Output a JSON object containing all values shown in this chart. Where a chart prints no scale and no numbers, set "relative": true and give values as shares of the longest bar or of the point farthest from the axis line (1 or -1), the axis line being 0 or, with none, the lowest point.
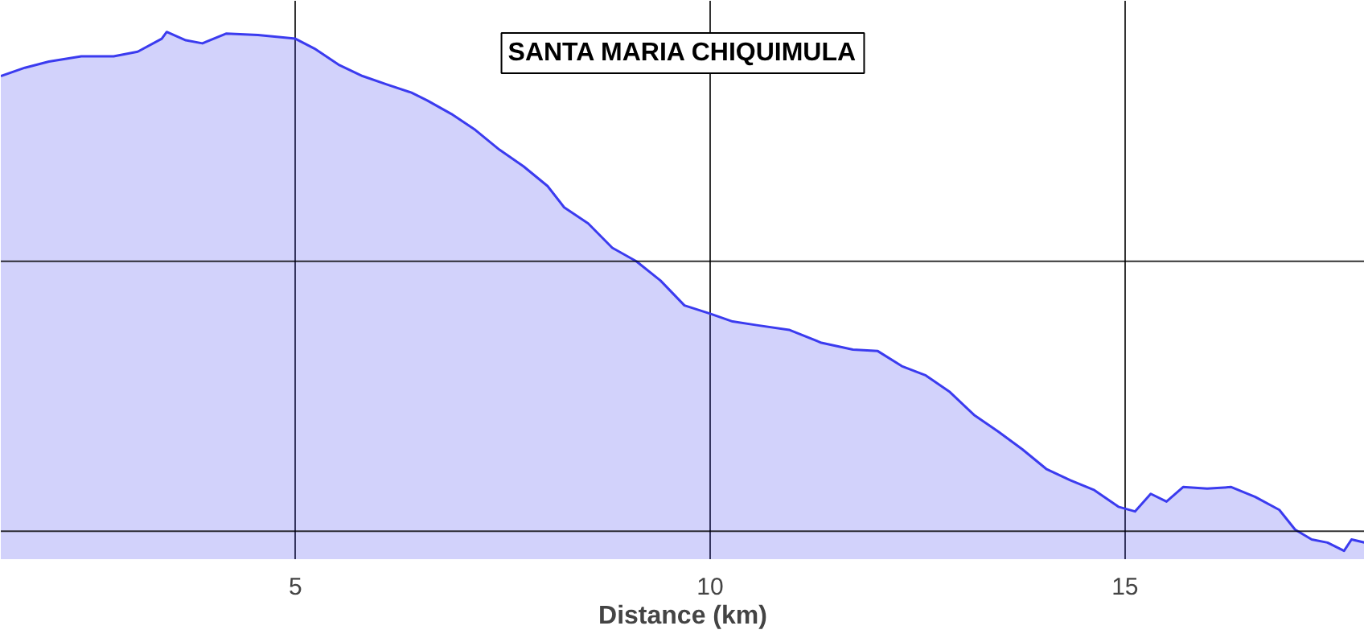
{
  "chart_data": {
    "type": "area",
    "title": "SANTA MARIA CHIQUIMULA",
    "xlabel": "Distance (km)",
    "relative": true,
    "xlim": [
      1.45,
      17.89
    ],
    "xticks": [
      5,
      10,
      15
    ],
    "grid": "x",
    "x": [
      1.45,
      1.74,
      2.03,
      2.42,
      2.81,
      3.1,
      3.39,
      3.45,
      3.68,
      3.88,
      4.17,
      4.55,
      5.0,
      5.23,
      5.52,
      5.81,
      6.1,
      6.4,
      6.59,
      6.88,
      7.17,
      7.46,
      7.75,
      8.04,
      8.24,
      8.53,
      8.82,
      9.11,
      9.4,
      9.69,
      10.0,
      10.27,
      10.56,
      10.95,
      11.34,
      11.72,
      12.02,
      12.31,
      12.6,
      12.89,
      13.18,
      13.47,
      13.76,
      14.05,
      14.34,
      14.63,
      14.92,
      15.12,
      15.31,
      15.5,
      15.7,
      15.99,
      16.28,
      16.57,
      16.86,
      17.05,
      17.25,
      17.44,
      17.64,
      17.73,
      17.89
    ],
    "series": [
      {
        "color": "#3b3bef",
        "values": [
          0.915,
          0.931,
          0.943,
          0.953,
          0.953,
          0.962,
          0.987,
          1.0,
          0.984,
          0.978,
          0.997,
          0.994,
          0.987,
          0.968,
          0.937,
          0.915,
          0.899,
          0.883,
          0.868,
          0.842,
          0.811,
          0.773,
          0.741,
          0.703,
          0.662,
          0.631,
          0.584,
          0.558,
          0.521,
          0.473,
          0.457,
          0.442,
          0.435,
          0.426,
          0.401,
          0.388,
          0.385,
          0.356,
          0.338,
          0.306,
          0.262,
          0.23,
          0.196,
          0.158,
          0.136,
          0.117,
          0.085,
          0.076,
          0.11,
          0.095,
          0.123,
          0.12,
          0.123,
          0.104,
          0.079,
          0.041,
          0.022,
          0.016,
          0,
          0.022,
          0.016
        ]
      }
    ],
    "ref_lines": [
      {
        "axis": "y",
        "value": 0.558,
        "color": "#000000"
      },
      {
        "axis": "y",
        "value": 0.038,
        "color": "#000000"
      }
    ]
  }
}
